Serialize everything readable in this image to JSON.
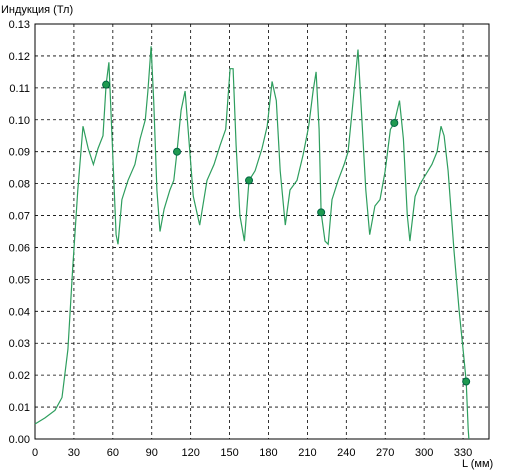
{
  "chart_data": {
    "type": "line",
    "y_label": "Индукция (Тл)",
    "x_label": "L (мм)",
    "xlim": [
      0,
      350
    ],
    "ylim": [
      0,
      0.13
    ],
    "xticks": [
      0,
      30,
      60,
      90,
      120,
      150,
      180,
      210,
      240,
      270,
      300,
      330
    ],
    "yticks": [
      {
        "value": 0,
        "label": "0.00"
      },
      0.01,
      0.02,
      0.03,
      0.04,
      0.05,
      0.06,
      0.07,
      0.08,
      0.09,
      {
        "value": 0.1,
        "label": "0.10"
      },
      0.11,
      0.12,
      0.13
    ],
    "grid": true,
    "series": [
      {
        "color": "#2e9e5e",
        "x": [
          0,
          7.7,
          15.4,
          20.8,
          25.4,
          29,
          33,
          37,
          41,
          45,
          48.6,
          52.4,
          54.8,
          57,
          59.4,
          62.5,
          64,
          67,
          71.7,
          77,
          81,
          85,
          87,
          89.5,
          91.5,
          94,
          96.4,
          99.5,
          104,
          107,
          109.5,
          112.6,
          115.7,
          118,
          122,
          127,
          132.6,
          138,
          142.7,
          147,
          150.4,
          152.7,
          155,
          158,
          161.4,
          165,
          169.7,
          175,
          179,
          182.8,
          186,
          189,
          193,
          196.6,
          202,
          206.7,
          211,
          214.4,
          216.7,
          219,
          220.6,
          223.6,
          226,
          229,
          233.7,
          238.3,
          241.4,
          244.5,
          249,
          252,
          255,
          258,
          262,
          266,
          270,
          274,
          277,
          281,
          284,
          287,
          289,
          293,
          297,
          301.5,
          306,
          310,
          313,
          315.4,
          318.5,
          323,
          327,
          330,
          332.4,
          334,
          334.5
        ],
        "values": [
          0.0047,
          0.0066,
          0.009,
          0.013,
          0.028,
          0.053,
          0.078,
          0.098,
          0.091,
          0.086,
          0.091,
          0.095,
          0.111,
          0.118,
          0.094,
          0.064,
          0.061,
          0.075,
          0.081,
          0.086,
          0.094,
          0.1,
          0.109,
          0.123,
          0.106,
          0.078,
          0.065,
          0.072,
          0.078,
          0.081,
          0.09,
          0.103,
          0.109,
          0.097,
          0.076,
          0.067,
          0.081,
          0.086,
          0.092,
          0.097,
          0.116,
          0.116,
          0.092,
          0.07,
          0.062,
          0.081,
          0.084,
          0.091,
          0.098,
          0.112,
          0.106,
          0.084,
          0.067,
          0.078,
          0.081,
          0.089,
          0.098,
          0.109,
          0.115,
          0.097,
          0.071,
          0.062,
          0.061,
          0.075,
          0.081,
          0.086,
          0.09,
          0.103,
          0.122,
          0.1,
          0.078,
          0.064,
          0.073,
          0.075,
          0.084,
          0.097,
          0.099,
          0.106,
          0.094,
          0.07,
          0.062,
          0.076,
          0.08,
          0.083,
          0.086,
          0.09,
          0.098,
          0.095,
          0.084,
          0.059,
          0.04,
          0.028,
          0.018,
          0.003,
          0
        ]
      }
    ],
    "markers": {
      "color": "#1f9a50",
      "x": [
        54.8,
        109.5,
        165,
        220.6,
        277,
        332.4
      ],
      "values": [
        0.111,
        0.09,
        0.081,
        0.071,
        0.099,
        0.018
      ]
    }
  }
}
